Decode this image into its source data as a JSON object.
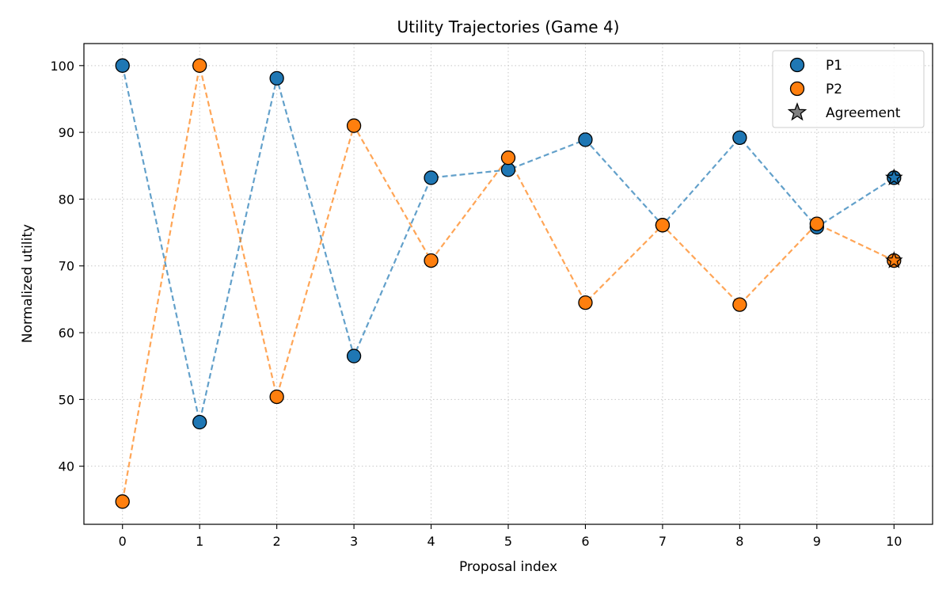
{
  "chart_data": {
    "type": "line",
    "title": "Utility Trajectories (Game 4)",
    "xlabel": "Proposal index",
    "ylabel": "Normalized utility",
    "x": [
      0,
      1,
      2,
      3,
      4,
      5,
      6,
      7,
      8,
      9,
      10
    ],
    "x_ticks": [
      "0",
      "1",
      "2",
      "3",
      "4",
      "5",
      "6",
      "7",
      "8",
      "9",
      "10"
    ],
    "y_ticks": [
      "40",
      "50",
      "60",
      "70",
      "80",
      "90",
      "100"
    ],
    "xlim": [
      -0.5,
      10.5
    ],
    "ylim": [
      31.3,
      103.3
    ],
    "grid": true,
    "legend_position": "top-right",
    "series": [
      {
        "name": "P1",
        "color": "#1f77b4",
        "values": [
          100,
          46.6,
          98.1,
          56.5,
          83.2,
          84.4,
          88.9,
          76.1,
          89.2,
          75.8,
          83.2
        ]
      },
      {
        "name": "P2",
        "color": "#ff7f0e",
        "values": [
          34.7,
          100,
          50.4,
          91.0,
          70.8,
          86.2,
          64.5,
          76.1,
          64.2,
          76.3,
          70.8
        ]
      }
    ],
    "agreement": {
      "name": "Agreement",
      "legend_color": "#808080",
      "x": 10,
      "points": [
        83.2,
        70.8
      ]
    }
  }
}
